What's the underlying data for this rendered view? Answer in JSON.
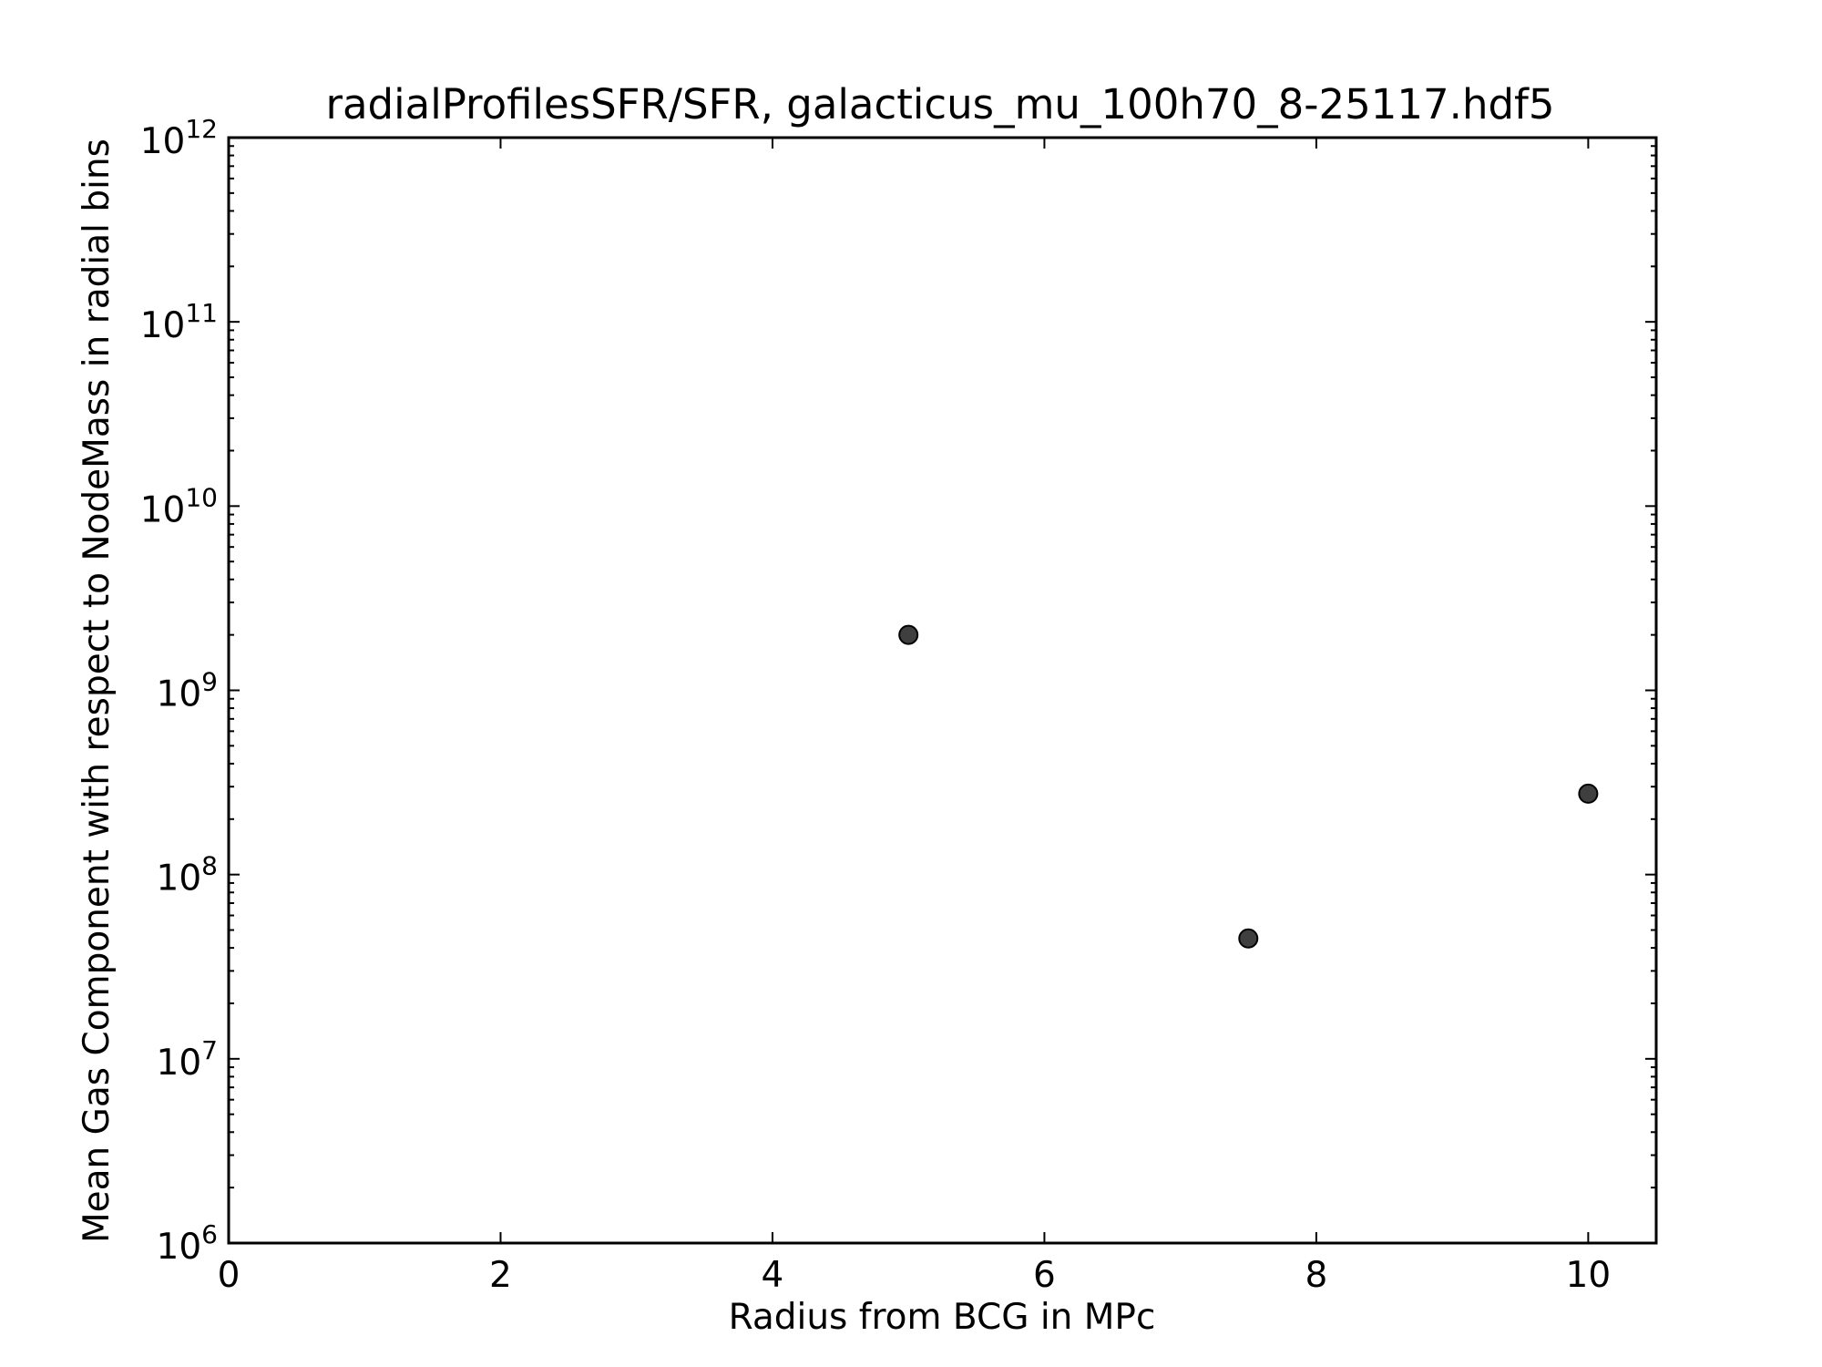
{
  "chart_data": {
    "type": "scatter",
    "title": "radialProfilesSFR/SFR, galacticus_mu_100h70_8-25117.hdf5",
    "xlabel": "Radius from BCG in MPc",
    "ylabel": "Mean Gas Component with respect to NodeMass in radial bins",
    "xlim": [
      0,
      10.5
    ],
    "ylim": [
      1000000,
      1000000000000
    ],
    "yscale": "log",
    "grid": false,
    "x_ticks": [
      0,
      2,
      4,
      6,
      8,
      10
    ],
    "x_tick_labels": [
      "0",
      "2",
      "4",
      "6",
      "8",
      "10"
    ],
    "y_ticks": [
      {
        "value": 1000000,
        "base": "10",
        "exp": "6"
      },
      {
        "value": 10000000,
        "base": "10",
        "exp": "7"
      },
      {
        "value": 100000000,
        "base": "10",
        "exp": "8"
      },
      {
        "value": 1000000000,
        "base": "10",
        "exp": "9"
      },
      {
        "value": 10000000000,
        "base": "10",
        "exp": "10"
      },
      {
        "value": 100000000000,
        "base": "10",
        "exp": "11"
      },
      {
        "value": 1000000000000,
        "base": "10",
        "exp": "12"
      }
    ],
    "series": [
      {
        "points": [
          {
            "x": 5.0,
            "y": 2000000000
          },
          {
            "x": 7.5,
            "y": 45000000
          },
          {
            "x": 10.0,
            "y": 275000000
          }
        ],
        "color": "#3f3f3f"
      }
    ]
  }
}
